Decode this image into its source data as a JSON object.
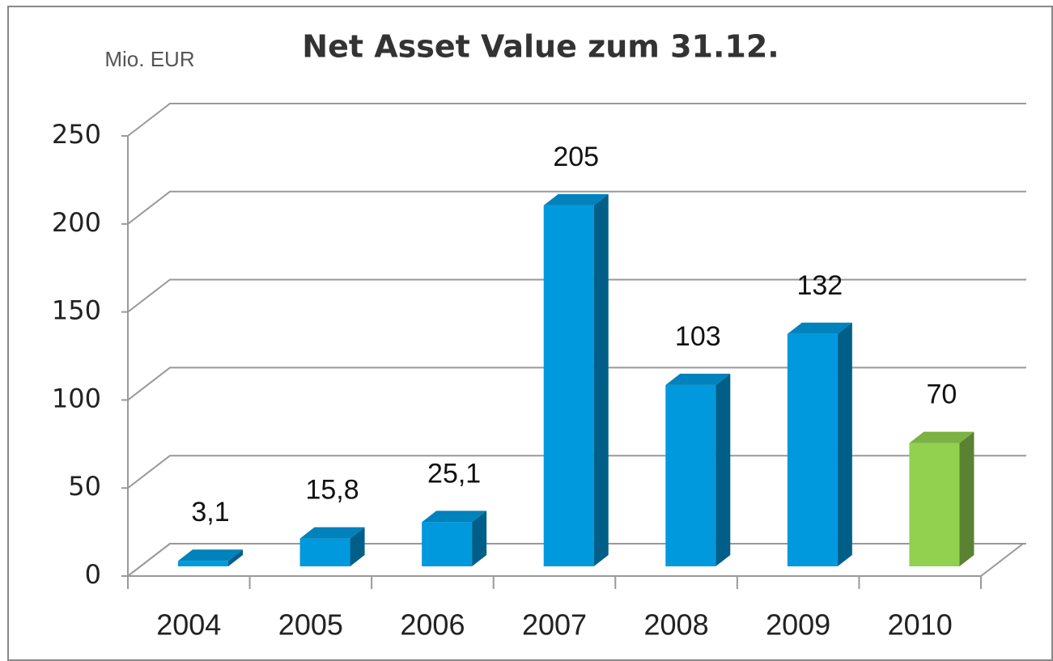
{
  "chart_data": {
    "type": "bar3d",
    "title": "Net Asset Value zum 31.12.",
    "y_axis_label": "Mio. EUR",
    "categories": [
      "2004",
      "2005",
      "2006",
      "2007",
      "2008",
      "2009",
      "2010"
    ],
    "values": [
      3.1,
      15.8,
      25.1,
      205,
      103,
      132,
      70
    ],
    "value_labels": [
      "3,1",
      "15,8",
      "25,1",
      "205",
      "103",
      "132",
      "70"
    ],
    "colors": [
      "#0099dd",
      "#0099dd",
      "#0099dd",
      "#0099dd",
      "#0099dd",
      "#0099dd",
      "#92d050"
    ],
    "ylim": [
      0,
      250
    ],
    "yticks": [
      0,
      50,
      100,
      150,
      200,
      250
    ],
    "grid": true
  }
}
